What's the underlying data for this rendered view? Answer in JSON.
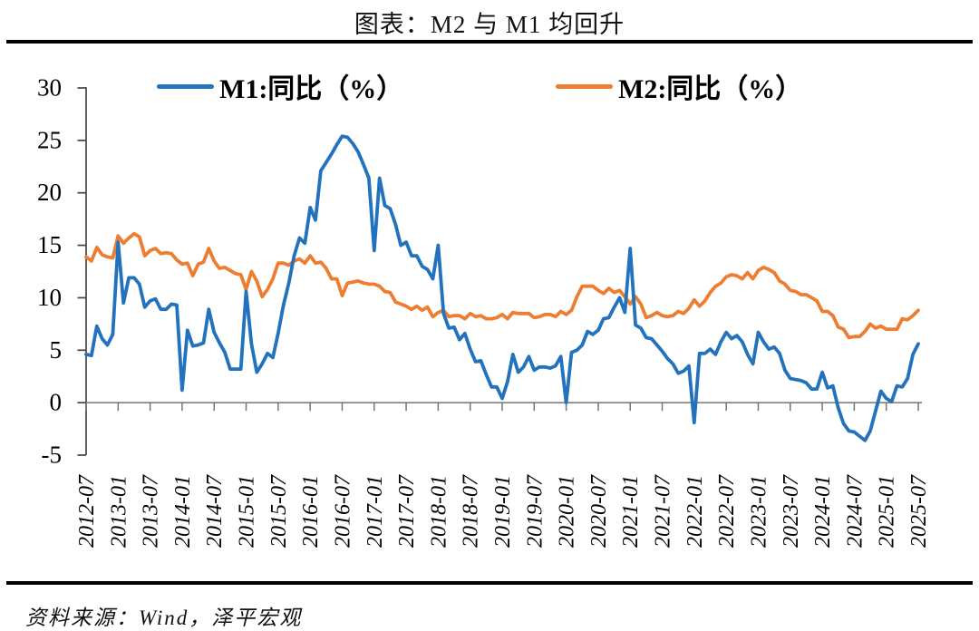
{
  "header": {
    "title": "图表：M2 与 M1 均回升"
  },
  "footer": {
    "source": "资料来源：Wind，泽平宏观"
  },
  "chart_data": {
    "type": "line",
    "title": "图表：M2 与 M1 均回升",
    "x_start": "2012-07",
    "x_end": "2025-07",
    "x_frequency": "monthly",
    "xticklabels": [
      "2012-07",
      "2013-01",
      "2013-07",
      "2014-01",
      "2014-07",
      "2015-01",
      "2015-07",
      "2016-01",
      "2016-07",
      "2017-01",
      "2017-07",
      "2018-01",
      "2018-07",
      "2019-01",
      "2019-07",
      "2020-01",
      "2020-07",
      "2021-01",
      "2021-07",
      "2022-01",
      "2022-07",
      "2023-01",
      "2023-07",
      "2024-01",
      "2024-07",
      "2025-01",
      "2025-07"
    ],
    "yticks": [
      30,
      25,
      20,
      15,
      10,
      5,
      0,
      -5
    ],
    "ylim": [
      -5,
      30
    ],
    "grid": false,
    "legend_position": "top",
    "series": [
      {
        "name": "M1:同比（%）",
        "color": "#2272BE",
        "values": [
          4.6,
          4.5,
          7.3,
          6.1,
          5.5,
          6.5,
          15.3,
          9.5,
          11.9,
          11.9,
          11.3,
          9.1,
          9.7,
          9.9,
          8.9,
          8.9,
          9.4,
          9.3,
          1.2,
          6.9,
          5.4,
          5.5,
          5.7,
          8.9,
          6.7,
          5.7,
          4.8,
          3.2,
          3.2,
          3.2,
          10.6,
          5.6,
          2.9,
          3.7,
          4.7,
          4.3,
          6.6,
          9.3,
          11.4,
          14.0,
          15.7,
          15.2,
          18.6,
          17.4,
          22.1,
          22.9,
          23.7,
          24.6,
          25.4,
          25.3,
          24.7,
          23.9,
          22.7,
          21.4,
          14.5,
          21.4,
          18.8,
          18.5,
          17.0,
          15.0,
          15.3,
          14.0,
          14.0,
          13.0,
          12.7,
          11.8,
          15.0,
          8.5,
          7.1,
          7.2,
          6.0,
          6.6,
          5.1,
          3.9,
          4.0,
          2.7,
          1.5,
          1.5,
          0.4,
          2.0,
          4.6,
          2.9,
          3.4,
          4.4,
          3.1,
          3.4,
          3.4,
          3.3,
          3.5,
          4.4,
          0.0,
          4.8,
          5.0,
          5.5,
          6.8,
          6.5,
          6.9,
          8.0,
          8.1,
          9.1,
          10.0,
          8.6,
          14.7,
          7.4,
          7.1,
          6.2,
          6.1,
          5.5,
          4.9,
          4.2,
          3.7,
          2.8,
          3.0,
          3.5,
          -1.9,
          4.7,
          4.7,
          5.1,
          4.6,
          5.8,
          6.7,
          6.1,
          6.4,
          5.8,
          4.6,
          3.7,
          6.7,
          5.8,
          5.1,
          5.3,
          4.7,
          3.1,
          2.3,
          2.2,
          2.1,
          1.9,
          1.3,
          1.3,
          2.9,
          1.4,
          1.6,
          -0.5,
          -2.0,
          -2.7,
          -2.8,
          -3.2,
          -3.6,
          -2.7,
          -0.8,
          1.1,
          0.4,
          0.1,
          1.6,
          1.5,
          2.3,
          4.6,
          5.6
        ]
      },
      {
        "name": "M2:同比（%）",
        "color": "#ED7D31",
        "values": [
          13.9,
          13.5,
          14.8,
          14.1,
          13.9,
          13.8,
          15.9,
          15.2,
          15.7,
          16.1,
          15.8,
          14.0,
          14.5,
          14.7,
          14.2,
          14.3,
          14.2,
          13.6,
          13.2,
          13.3,
          12.1,
          13.2,
          13.4,
          14.7,
          13.5,
          12.8,
          12.9,
          12.6,
          12.3,
          12.2,
          10.8,
          12.5,
          11.6,
          10.1,
          10.8,
          11.8,
          13.3,
          13.3,
          13.1,
          13.5,
          13.7,
          13.3,
          14.0,
          13.3,
          13.4,
          12.8,
          11.8,
          11.8,
          10.2,
          11.4,
          11.5,
          11.6,
          11.4,
          11.3,
          11.3,
          11.1,
          10.6,
          10.5,
          9.6,
          9.4,
          9.2,
          8.9,
          9.2,
          8.8,
          9.1,
          8.2,
          8.6,
          8.8,
          8.2,
          8.3,
          8.3,
          8.0,
          8.5,
          8.2,
          8.3,
          8.0,
          8.0,
          8.1,
          8.4,
          8.0,
          8.6,
          8.5,
          8.5,
          8.5,
          8.1,
          8.2,
          8.4,
          8.4,
          8.2,
          8.7,
          8.4,
          8.8,
          10.1,
          11.1,
          11.1,
          11.1,
          10.7,
          10.4,
          10.9,
          10.5,
          10.7,
          10.1,
          9.4,
          10.1,
          9.4,
          8.1,
          8.3,
          8.6,
          8.3,
          8.2,
          8.3,
          8.7,
          8.5,
          9.0,
          9.8,
          9.2,
          9.7,
          10.5,
          11.1,
          11.4,
          12.0,
          12.2,
          12.1,
          11.8,
          12.4,
          11.8,
          12.6,
          12.9,
          12.7,
          12.4,
          11.6,
          11.3,
          10.7,
          10.6,
          10.3,
          10.3,
          10.0,
          9.7,
          8.7,
          8.7,
          8.3,
          7.2,
          7.0,
          6.2,
          6.3,
          6.3,
          6.8,
          7.5,
          7.1,
          7.3,
          7.0,
          7.0,
          7.0,
          8.0,
          7.9,
          8.3,
          8.8
        ]
      }
    ]
  }
}
